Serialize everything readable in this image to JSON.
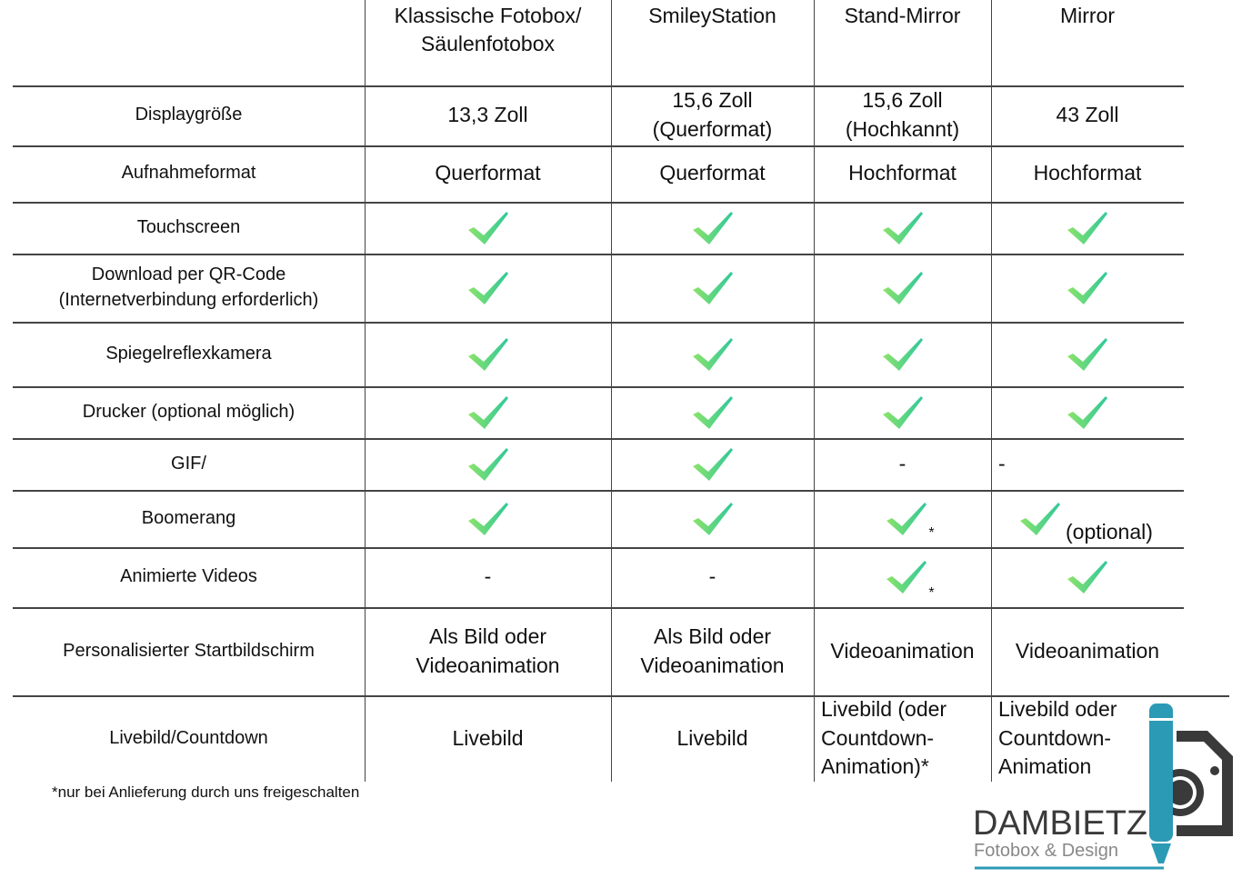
{
  "columns": [
    "",
    "Klassische Fotobox/ Säulenfotobox",
    "SmileyStation",
    "Stand-Mirror",
    "Mirror"
  ],
  "rows": [
    {
      "label": "Displaygröße",
      "cells": [
        "13,3 Zoll",
        "15,6 Zoll (Querformat)",
        "15,6 Zoll (Hochkannt)",
        "43 Zoll"
      ]
    },
    {
      "label": "Aufnahmeformat",
      "cells": [
        "Querformat",
        "Querformat",
        "Hochformat",
        "Hochformat"
      ]
    },
    {
      "label": "Touchscreen",
      "cells": [
        "check",
        "check",
        "check",
        "check"
      ]
    },
    {
      "label": "Download per QR-Code (Internetverbindung erforderlich)",
      "cells": [
        "check",
        "check",
        "check",
        "check"
      ]
    },
    {
      "label": "Spiegelreflexkamera",
      "cells": [
        "check",
        "check",
        "check",
        "check"
      ]
    },
    {
      "label": "Drucker (optional möglich)",
      "cells": [
        "check",
        "check",
        "check",
        "check"
      ]
    },
    {
      "label": "GIF/",
      "cells": [
        "check",
        "check",
        "-",
        "-"
      ]
    },
    {
      "label": "Boomerang",
      "cells": [
        "check",
        "check",
        "check*",
        "check (optional)"
      ]
    },
    {
      "label": "Animierte Videos",
      "cells": [
        "-",
        "-",
        "check*",
        "check"
      ]
    },
    {
      "label": "Personalisierter Startbildschirm",
      "cells": [
        "Als Bild oder Videoanimation",
        "Als Bild oder Videoanimation",
        "Videoanimation",
        "Videoanimation"
      ]
    },
    {
      "label": "Livebild/Countdown",
      "cells": [
        "Livebild",
        "Livebild",
        "Livebild (oder Countdown-Animation)*",
        "Livebild oder Countdown-Animation"
      ]
    }
  ],
  "check_suffix": {
    "star": "*",
    "optional": "(optional)"
  },
  "footnote": "*nur bei Anlieferung durch uns freigeschalten",
  "logo": {
    "name": "DAMBIETZ",
    "tagline": "Fotobox & Design",
    "colors": {
      "accent": "#2b9ab5",
      "dark": "#3a3a3a"
    }
  },
  "check_colors": [
    "#8be36a",
    "#2fc89a"
  ]
}
